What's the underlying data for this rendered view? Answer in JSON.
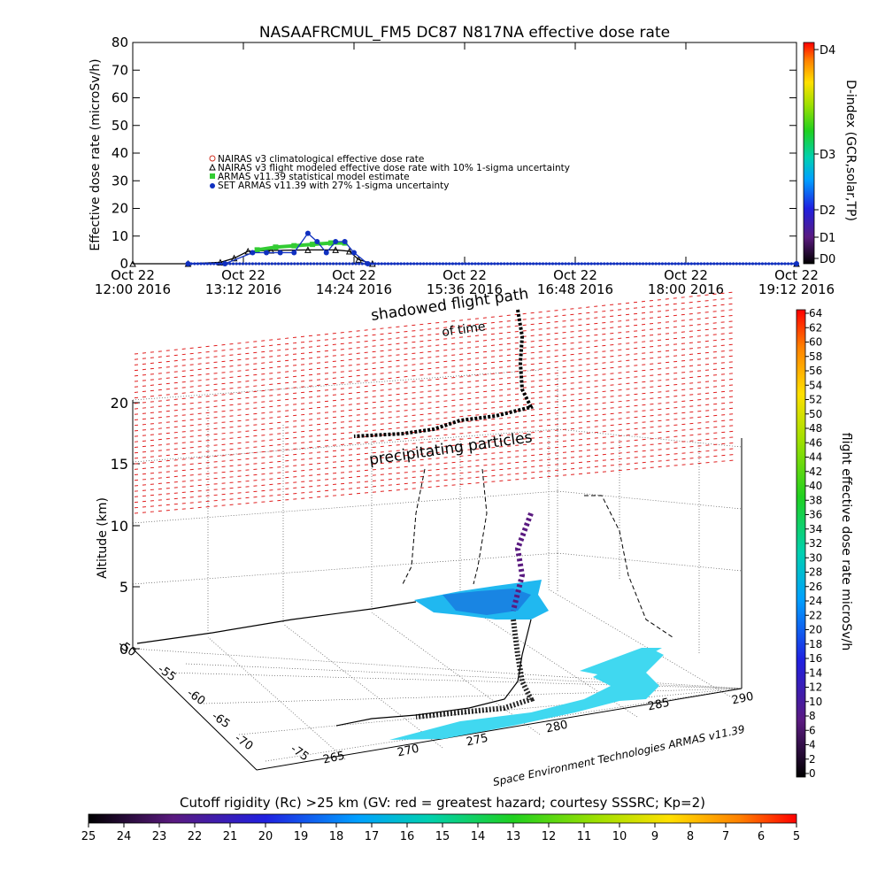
{
  "title": "NASAAFRCMUL_FM5 DC87 N817NA effective dose rate",
  "chart_data": [
    {
      "type": "line",
      "ylabel": "Effective dose rate (microSv/h)",
      "ylim": [
        0,
        80
      ],
      "yticks": [
        "0",
        "10",
        "20",
        "30",
        "40",
        "50",
        "60",
        "70",
        "80"
      ],
      "xlim_hours": [
        12.0,
        19.2
      ],
      "xticks": [
        {
          "day": "Oct 22",
          "time": "12:00 2016"
        },
        {
          "day": "Oct 22",
          "time": "13:12 2016"
        },
        {
          "day": "Oct 22",
          "time": "14:24 2016"
        },
        {
          "day": "Oct 22",
          "time": "15:36 2016"
        },
        {
          "day": "Oct 22",
          "time": "16:48 2016"
        },
        {
          "day": "Oct 22",
          "time": "18:00 2016"
        },
        {
          "day": "Oct 22",
          "time": "19:12 2016"
        }
      ],
      "right_axis": {
        "label": "D-index (GCR,solar,TP)",
        "ticks": [
          "D0",
          "D1",
          "D2",
          "D3",
          "D4"
        ]
      },
      "legend": [
        {
          "label": "NAIRAS v3 climatological effective dose rate",
          "color": "#d03020"
        },
        {
          "label": "NAIRAS v3 flight modeled effective dose rate with 10% 1-sigma uncertainty",
          "color": "#000000"
        },
        {
          "label": "ARMAS v11.39 statistical model estimate",
          "color": "#33cc33"
        },
        {
          "label": "SET ARMAS v11.39 with 27% 1-sigma uncertainty",
          "color": "#1030c0"
        }
      ],
      "series": [
        {
          "name": "NAIRAS v3 flight modeled effective dose rate with 10% 1-sigma uncertainty",
          "x": [
            12.0,
            12.6,
            12.95,
            13.1,
            13.25,
            13.5,
            13.9,
            14.2,
            14.35,
            14.45,
            14.6,
            19.2
          ],
          "y": [
            0,
            0,
            0.5,
            2,
            4.5,
            4.8,
            5,
            5,
            4.5,
            1.5,
            0,
            0
          ]
        },
        {
          "name": "ARMAS v11.39 statistical model estimate",
          "x": [
            13.35,
            13.55,
            13.75,
            13.95,
            14.15,
            14.3
          ],
          "y": [
            5,
            6,
            6.5,
            7,
            7.5,
            7.5
          ]
        },
        {
          "name": "SET ARMAS v11.39 with 27% 1-sigma uncertainty",
          "x": [
            12.6,
            13.0,
            13.3,
            13.45,
            13.6,
            13.75,
            13.9,
            14.0,
            14.1,
            14.2,
            14.3,
            14.4,
            14.55,
            19.2
          ],
          "y": [
            0,
            0,
            4,
            4,
            4,
            4,
            11,
            8,
            4,
            8,
            8,
            4,
            0,
            0
          ]
        }
      ]
    },
    {
      "type": "scatter",
      "title": "",
      "zlabel": "Altitude (km)",
      "zticks": [
        "0",
        "5",
        "10",
        "15",
        "20"
      ],
      "lat_ticks": [
        "-50",
        "-55",
        "-60",
        "-65",
        "-70",
        "-75"
      ],
      "lon_ticks": [
        "265",
        "270",
        "275",
        "280",
        "285",
        "290"
      ],
      "annotations": [
        "shadowed flight path",
        "of time",
        "precipitating particles"
      ],
      "colorbar": {
        "label": "flight effective dose rate microSv/h",
        "ticks": [
          "0",
          "2",
          "4",
          "6",
          "8",
          "10",
          "12",
          "14",
          "16",
          "18",
          "20",
          "22",
          "24",
          "26",
          "28",
          "30",
          "32",
          "34",
          "36",
          "38",
          "40",
          "42",
          "44",
          "46",
          "48",
          "50",
          "52",
          "54",
          "56",
          "58",
          "60",
          "62",
          "64"
        ]
      },
      "credit": "Space Environment Technologies ARMAS v11.39"
    }
  ],
  "bottom_colorbar": {
    "label": "Cutoff rigidity (Rc) >25 km (GV: red = greatest hazard; courtesy SSSRC; Kp=2)",
    "ticks": [
      "25",
      "24",
      "23",
      "22",
      "21",
      "20",
      "19",
      "18",
      "17",
      "16",
      "15",
      "14",
      "13",
      "12",
      "11",
      "10",
      "9",
      "8",
      "7",
      "6",
      "5"
    ]
  }
}
